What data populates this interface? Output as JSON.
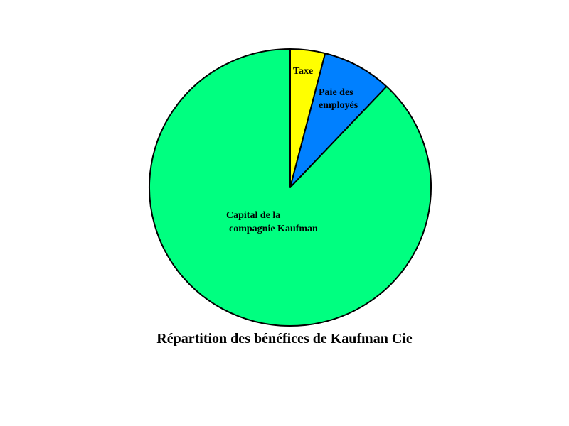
{
  "chart_data": {
    "type": "pie",
    "title": "Répartition des bénéfices de Kaufman Cie",
    "start": "12 o'clock, clockwise",
    "slices": [
      {
        "label_lines": [
          "Taxe"
        ],
        "value": 4,
        "color": "#ffff00"
      },
      {
        "label_lines": [
          "Paie des",
          "employés"
        ],
        "value": 8,
        "color": "#0080ff"
      },
      {
        "label_lines": [
          "Capital de la",
          "compagnie Kaufman"
        ],
        "value": 88,
        "color": "#00ff80"
      }
    ]
  }
}
